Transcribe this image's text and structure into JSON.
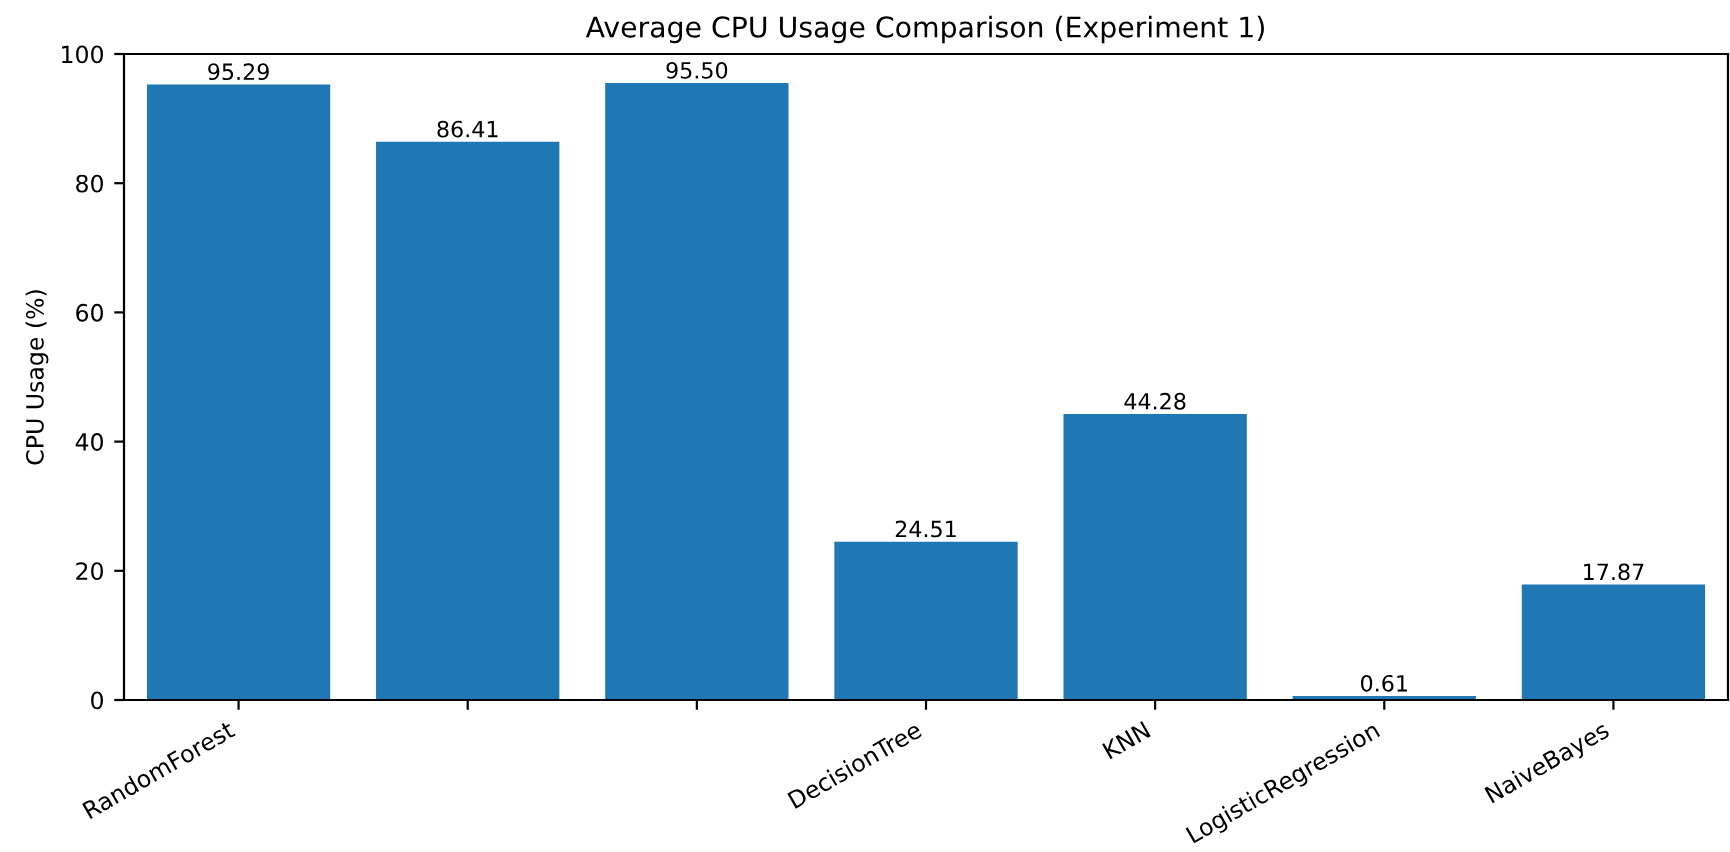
{
  "chart_data": {
    "type": "bar",
    "title": "Average CPU Usage Comparison (Experiment 1)",
    "ylabel": "CPU Usage (%)",
    "categories": [
      "RandomForest",
      null,
      null,
      "DecisionTree",
      "KNN",
      "LogisticRegression",
      "NaiveBayes"
    ],
    "values": [
      95.29,
      86.41,
      95.5,
      24.51,
      44.28,
      0.61,
      17.87
    ],
    "value_labels": [
      "95.29",
      "86.41",
      "95.50",
      "24.51",
      "44.28",
      "0.61",
      "17.87"
    ],
    "color": "#1f77b4",
    "ylim": [
      0,
      100
    ],
    "yticks": [
      0,
      20,
      40,
      60,
      80,
      100
    ],
    "grid": false
  }
}
